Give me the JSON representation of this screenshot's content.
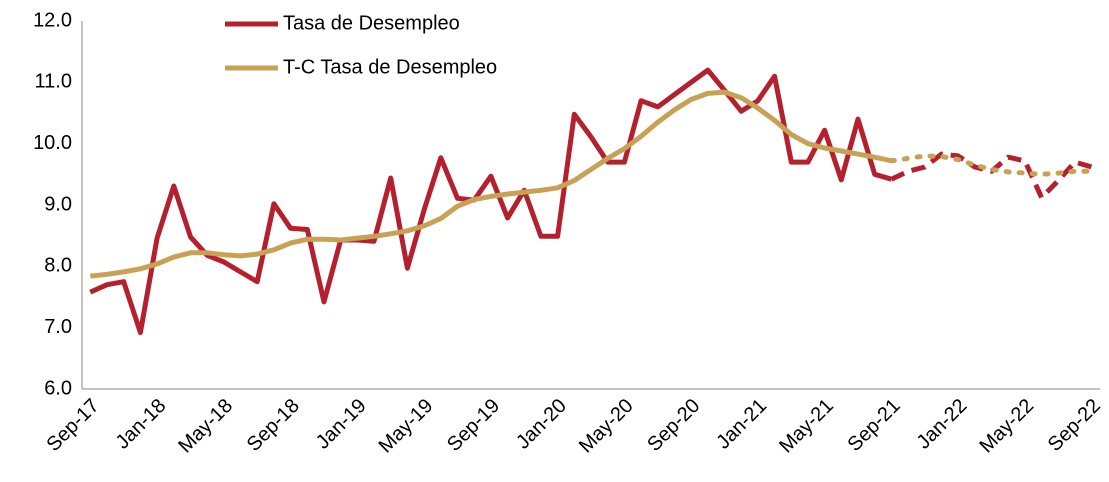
{
  "chart_data": {
    "type": "line",
    "categories": [
      "Sep-17",
      null,
      null,
      null,
      "Jan-18",
      null,
      null,
      null,
      "May-18",
      null,
      null,
      null,
      "Sep-18",
      null,
      null,
      null,
      "Jan-19",
      null,
      null,
      null,
      "May-19",
      null,
      null,
      null,
      "Sep-19",
      null,
      null,
      null,
      "Jan-20",
      null,
      null,
      null,
      "May-20",
      null,
      null,
      null,
      "Sep-20",
      null,
      null,
      null,
      "Jan-21",
      null,
      null,
      null,
      "May-21",
      null,
      null,
      null,
      "Sep-21",
      null,
      null,
      null,
      "Jan-22",
      null,
      null,
      null,
      "May-22",
      null,
      null,
      null,
      "Sep-22"
    ],
    "series": [
      {
        "name": "Tasa de Desempleo",
        "color": "#b5202e",
        "dash": "dashed",
        "dash_from": "Sep-21",
        "values": [
          7.58,
          7.7,
          7.75,
          6.92,
          8.46,
          9.31,
          8.48,
          8.18,
          8.07,
          7.91,
          7.75,
          9.02,
          8.62,
          8.6,
          7.42,
          8.43,
          8.43,
          8.41,
          9.44,
          7.97,
          8.92,
          9.77,
          9.11,
          9.08,
          9.47,
          8.79,
          9.24,
          8.49,
          8.49,
          10.48,
          10.11,
          9.7,
          9.7,
          10.7,
          10.6,
          10.8,
          11.0,
          11.2,
          10.87,
          10.53,
          10.7,
          11.1,
          9.7,
          9.7,
          10.22,
          9.41,
          10.4,
          9.5,
          9.42,
          9.55,
          9.62,
          9.83,
          9.8,
          9.62,
          9.55,
          9.78,
          9.72,
          9.12,
          9.4,
          9.7,
          9.62
        ]
      },
      {
        "name": "T-C Tasa de Desempleo",
        "color": "#c9a154",
        "dash": "dotted",
        "dash_from": "Sep-21",
        "values": [
          7.84,
          7.87,
          7.91,
          7.96,
          8.04,
          8.15,
          8.22,
          8.22,
          8.19,
          8.17,
          8.2,
          8.27,
          8.38,
          8.44,
          8.44,
          8.43,
          8.46,
          8.49,
          8.53,
          8.58,
          8.66,
          8.78,
          8.98,
          9.09,
          9.14,
          9.18,
          9.21,
          9.24,
          9.28,
          9.4,
          9.58,
          9.76,
          9.92,
          10.12,
          10.35,
          10.55,
          10.72,
          10.82,
          10.84,
          10.75,
          10.58,
          10.38,
          10.15,
          10.0,
          9.93,
          9.88,
          9.83,
          9.78,
          9.72,
          9.76,
          9.8,
          9.79,
          9.74,
          9.65,
          9.58,
          9.54,
          9.52,
          9.5,
          9.52,
          9.55,
          9.55
        ]
      }
    ],
    "ylim": [
      6,
      12
    ],
    "yticks": [
      {
        "value": 6,
        "label": "6.0"
      },
      {
        "value": 7,
        "label": "7.0"
      },
      {
        "value": 8,
        "label": "8.0"
      },
      {
        "value": 9,
        "label": "9.0"
      },
      {
        "value": 10,
        "label": "10.0"
      },
      {
        "value": 11,
        "label": "11.0"
      },
      {
        "value": 12,
        "label": "12.0"
      }
    ],
    "grid": false,
    "legend": "top"
  }
}
